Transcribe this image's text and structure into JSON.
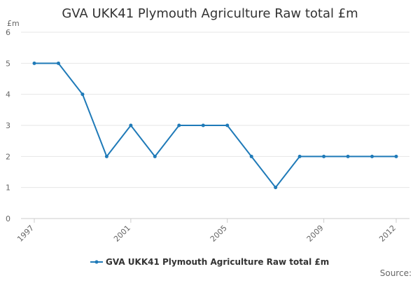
{
  "chart_data": {
    "type": "line",
    "title": "GVA UKK41 Plymouth Agriculture Raw total £m",
    "y_unit": "£m",
    "x": [
      1997,
      1998,
      1999,
      2000,
      2001,
      2002,
      2003,
      2004,
      2005,
      2006,
      2007,
      2008,
      2009,
      2010,
      2011,
      2012
    ],
    "x_tick_labels": [
      "1997",
      "2001",
      "2005",
      "2009",
      "2012"
    ],
    "x_tick_values": [
      1997,
      2001,
      2005,
      2009,
      2012
    ],
    "y_ticks": [
      0,
      1,
      2,
      3,
      4,
      5,
      6
    ],
    "ylim": [
      0,
      6
    ],
    "series": [
      {
        "name": "GVA UKK41 Plymouth Agriculture Raw total £m",
        "color": "#1f7ab8",
        "values": [
          5,
          5,
          4,
          2,
          3,
          2,
          3,
          3,
          3,
          2,
          1,
          2,
          2,
          2,
          2,
          2
        ]
      }
    ],
    "grid": true,
    "legend_position": "bottom"
  },
  "footer": {
    "source_label": "Source:"
  }
}
